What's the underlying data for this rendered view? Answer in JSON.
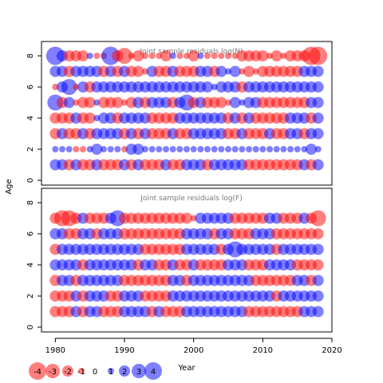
{
  "chart_data": [
    {
      "type": "scatter",
      "title": "Joint sample residuals log(N)",
      "xlabel": "Year",
      "ylabel": "Age",
      "xlim": [
        1978,
        2020
      ],
      "ylim": [
        0,
        8
      ],
      "x_ticks": [
        1980,
        1990,
        2000,
        2010,
        2020
      ],
      "y_ticks": [
        0,
        2,
        4,
        6,
        8
      ],
      "years": [
        1980,
        2018
      ],
      "ages": [
        1,
        2,
        3,
        4,
        5,
        6,
        7,
        8
      ],
      "residual_sign_rows": {
        "8": "bbrrrbrrbrrrrrrrrbrrrbrrrrrrrrrrrrrrrrrr",
        "7": "bbrbbbbrbrbrrrbrrbrrrbbrbbbrrrrrrrrrbbbr",
        "6": "rbbrbrbbbbbbbbbbbbbbbbbbbbbrbbbbbbbbbbbb",
        "5": "brbrrrbrrrrrbrbbbrbbrbrrrrbbbbrrrrrrrbbr",
        "4": "rrrbrrbbbrbbbbrrrrbbbbbbbrbrbrrrrrbbbrbr",
        "3": "rbrrbrbbbbrbrbrrrbrrbbbbbrrbrrrbrrbbrbbb",
        "2": "bbbrrbbbbbrbbbbbbbbbbbbbbbbbbbbbbbbbbbbb",
        "1": "bbrbrrbrrrbrbrrrbrrbbbrbbbbbrrrrrrrrbrbr"
      },
      "residual_magnitude_rows": {
        "8": "4222211142312111211121111112222121222444",
        "7": "2222222222222122222222222121212222222223",
        "6": "1231222222222222222222212222222222222222",
        "5": "3221221222122222222322222121222222222222",
        "4": "2222221222222222222222222222222222222222",
        "3": "2222222222222222222222222222222222222222",
        "2": "1111112111122111111111111111111111111211",
        "1": "2222222222222222222222222222222222222222"
      }
    },
    {
      "type": "scatter",
      "title": "Joint sample residuals log(F)",
      "xlabel": "Year",
      "ylabel": "Age",
      "xlim": [
        1978,
        2020
      ],
      "ylim": [
        0,
        8
      ],
      "x_ticks": [
        1980,
        1990,
        2000,
        2010,
        2020
      ],
      "y_ticks": [
        0,
        2,
        4,
        6,
        8
      ],
      "years": [
        1980,
        2018
      ],
      "ages": [
        1,
        2,
        3,
        4,
        5,
        6,
        7
      ],
      "residual_sign_rows": {
        "7": "rrrrbrrrbbrrrrrrrrrrrbbbbbrrrrrbbrrrbrrb",
        "6": "bbrrbbrbbbrrrrrrrrrbbbbrbbrrrbbbrrrrrrrr",
        "5": "rbbbbbbbbbbbbrrrrrrbbbbbrbbbbbbbrbbbbbbb",
        "4": "bbbbrbbbbbbbrbbrrbrrbrrrrbbbrrrbbbbrrrrr",
        "3": "rbbrbbbbbbrrrrrrrbbrbbbbbbbbbrrrrrrbbrbb",
        "2": "rrrbrbbbrrbbbrrrrbbbbbbbbbbbbbbbrbbbbbbb",
        "1": "rrrbrbbrrrbbbbrbrrrbbbbbbbbbrrrrrrrrbbbr"
      },
      "residual_magnitude_rows": {
        "7": "2332222223222222222212222222222222222231",
        "6": "2222222222222222222222222222222222222222",
        "5": "2222222222222222222222222232222222222222",
        "4": "2222222222222222222222222222222222222222",
        "3": "2222222222222222222222222222222222222222",
        "2": "2222222222222222222222222222222222222222",
        "1": "2222222222222222222222222222222222222222"
      }
    }
  ],
  "legend": {
    "items": [
      {
        "label": "-4",
        "value": -4
      },
      {
        "label": "-3",
        "value": -3
      },
      {
        "label": "-2",
        "value": -2
      },
      {
        "label": "-1",
        "value": -1
      },
      {
        "label": "0",
        "value": 0
      },
      {
        "label": "1",
        "value": 1
      },
      {
        "label": "2",
        "value": 2
      },
      {
        "label": "3",
        "value": 3
      },
      {
        "label": "4",
        "value": 4
      }
    ]
  },
  "colors": {
    "negative": "#ff0000",
    "positive": "#0000ff",
    "axis": "#000000",
    "panel_title": "#7a7a7a"
  }
}
